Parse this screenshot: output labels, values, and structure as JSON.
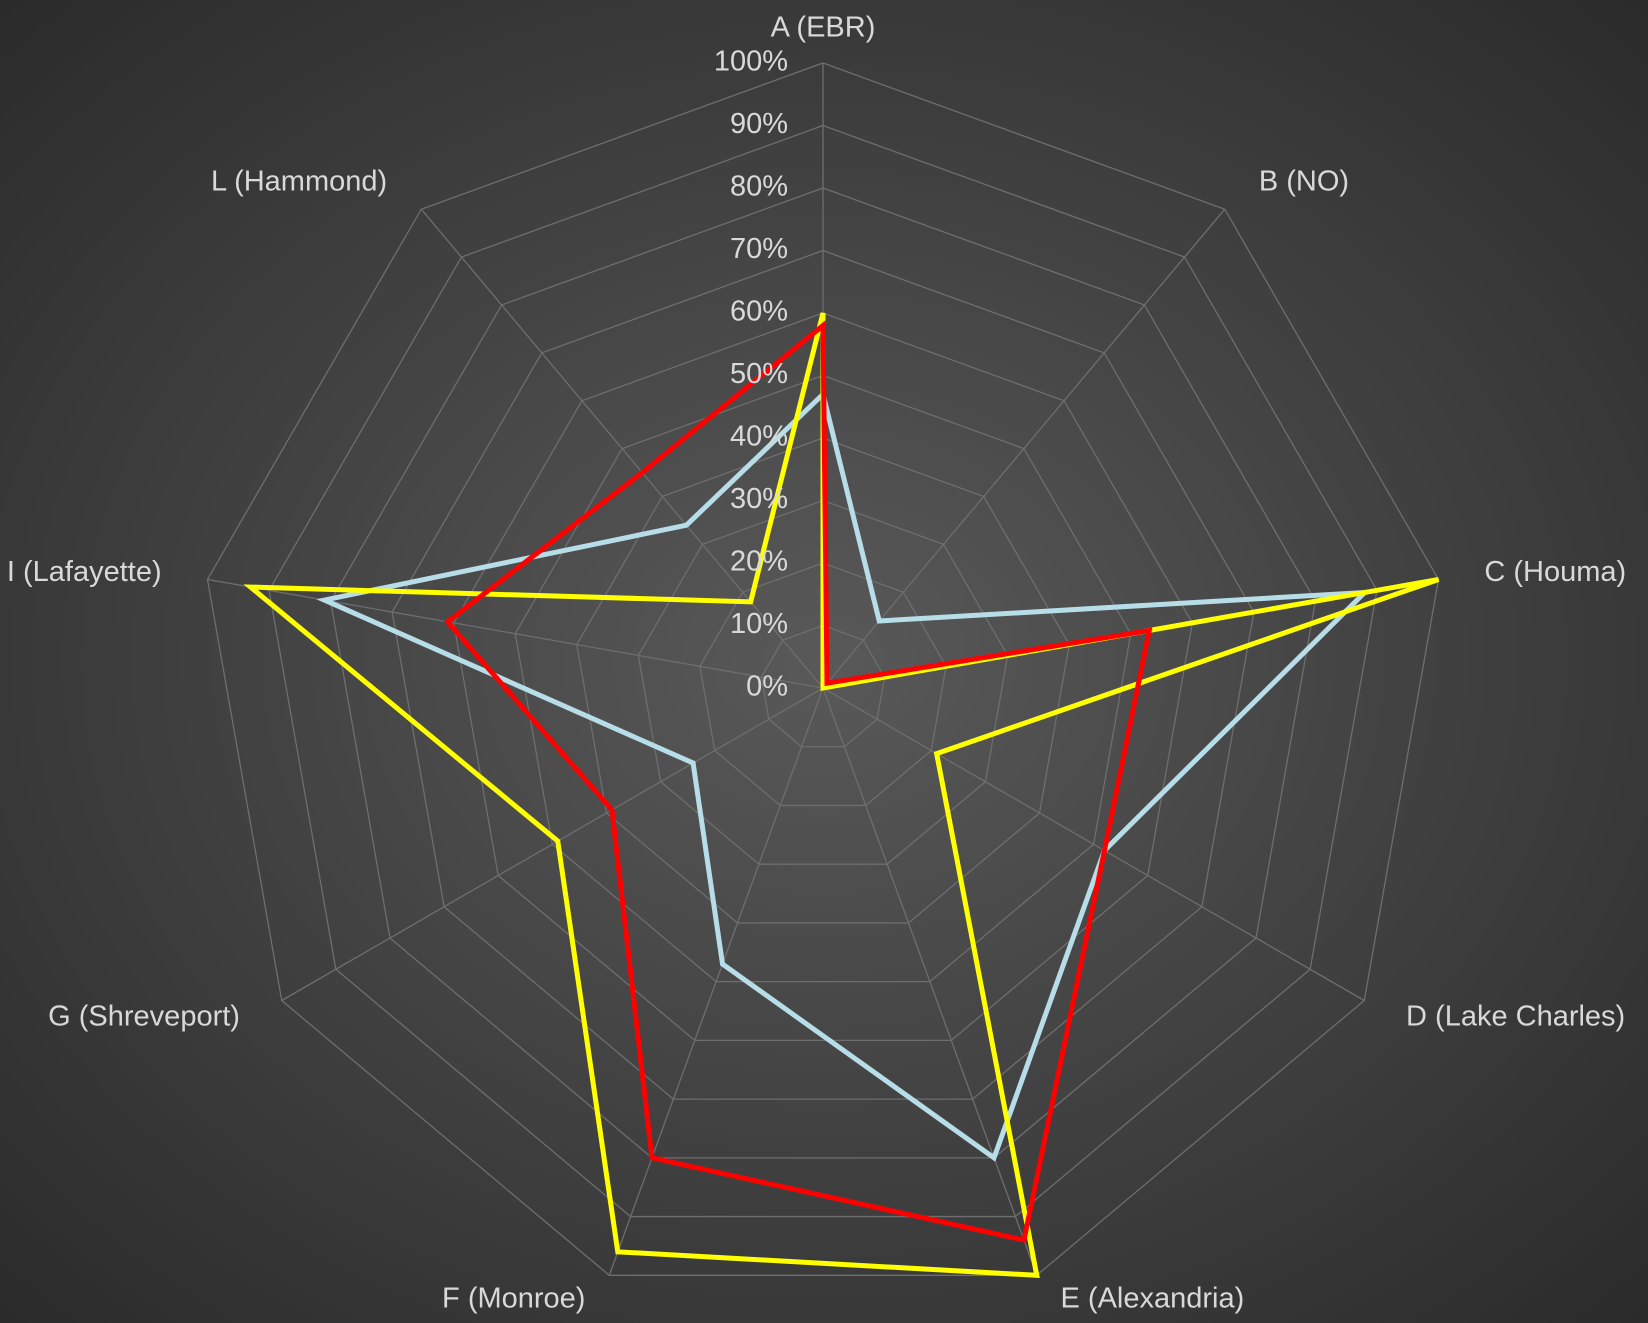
{
  "chart_data": {
    "type": "radar",
    "categories": [
      "A (EBR)",
      "B (NO)",
      "C (Houma)",
      "D (Lake Charles)",
      "E (Alexandria)",
      "F (Monroe)",
      "G (Shreveport)",
      "I (Lafayette)",
      "L (Hammond)"
    ],
    "series": [
      {
        "color": "#b7dde8",
        "values": [
          47,
          14,
          88,
          52,
          80,
          47,
          24,
          81,
          34
        ]
      },
      {
        "color": "#ffff00",
        "values": [
          60,
          0,
          100,
          21,
          100,
          96,
          49,
          93,
          18
        ]
      },
      {
        "color": "#ff0000",
        "values": [
          58,
          1,
          53,
          52,
          94,
          80,
          39,
          61,
          45
        ]
      }
    ],
    "ylim": [
      0,
      100
    ],
    "yticks": [
      {
        "value": 0,
        "label": "0%"
      },
      {
        "value": 10,
        "label": "10%"
      },
      {
        "value": 20,
        "label": "20%"
      },
      {
        "value": 30,
        "label": "30%"
      },
      {
        "value": 40,
        "label": "40%"
      },
      {
        "value": 50,
        "label": "50%"
      },
      {
        "value": 60,
        "label": "60%"
      },
      {
        "value": 70,
        "label": "70%"
      },
      {
        "value": 80,
        "label": "80%"
      },
      {
        "value": 90,
        "label": "90%"
      },
      {
        "value": 100,
        "label": "100%"
      }
    ],
    "grid": true
  }
}
